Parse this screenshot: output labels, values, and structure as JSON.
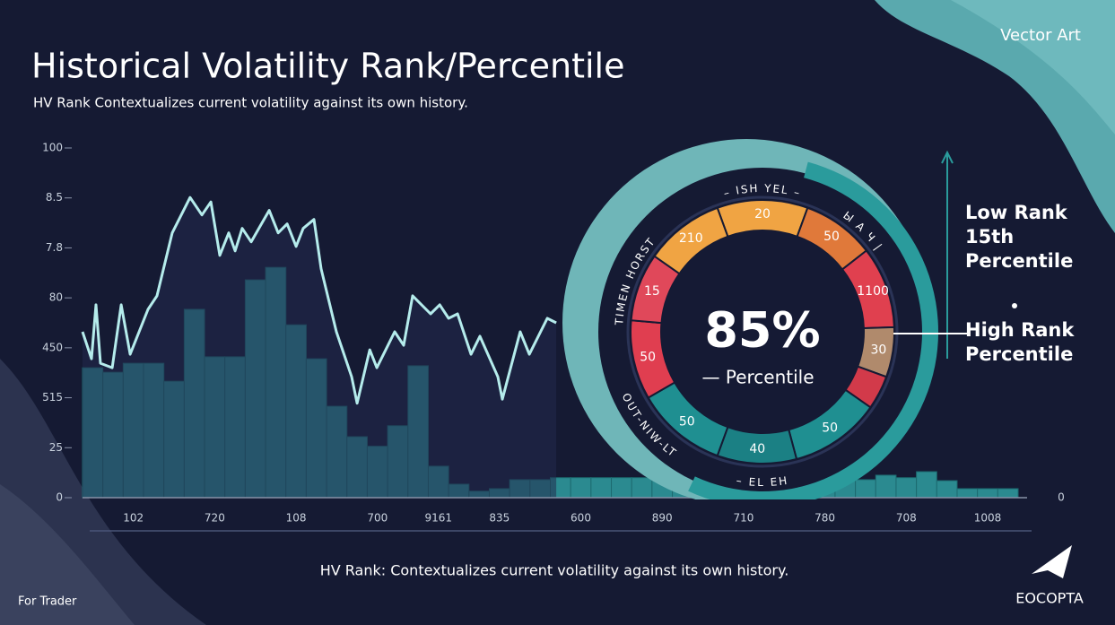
{
  "header": {
    "title": "Historical Volatility Rank/Percentile",
    "subtitle": "HV Rank Contextualizes current volatility against its own history.",
    "badge": "Vector Art"
  },
  "chart_data": {
    "type": "bar",
    "categories": [
      null,
      null,
      "102",
      null,
      null,
      null,
      "720",
      null,
      null,
      null,
      "108",
      null,
      null,
      null,
      "700",
      null,
      null,
      "9161",
      null,
      null,
      "835",
      null,
      null,
      null,
      "600",
      null,
      null,
      null,
      "890",
      null,
      null,
      null,
      "710",
      null,
      null,
      null,
      "780",
      null,
      null,
      null,
      "708",
      null,
      null,
      null,
      "1008",
      null
    ],
    "series": [
      {
        "type": "bar",
        "color": "#2b8a90",
        "values": [
          2.6,
          2.51,
          2.69,
          2.69,
          2.33,
          3.77,
          2.82,
          2.82,
          4.36,
          4.61,
          3.46,
          2.78,
          1.83,
          1.22,
          1.03,
          1.44,
          2.64,
          0.63,
          0.27,
          0.13,
          0.18,
          0.36,
          0.36,
          0.4,
          0.4,
          0.4,
          0.4,
          0.4,
          0.4,
          0.4,
          0.4,
          0.4,
          0.4,
          0.4,
          0.4,
          0.4,
          0.4,
          0.4,
          0.36,
          0.45,
          0.4,
          0.52,
          0.34,
          0.18,
          0.18,
          0.18
        ]
      },
      {
        "type": "line",
        "color": "#b5ecec",
        "x": [
          0,
          0.44,
          0.66,
          0.88,
          1.46,
          1.9,
          2.34,
          3.22,
          3.66,
          4.41,
          5.29,
          5.87,
          6.31,
          6.75,
          7.19,
          7.5,
          7.85,
          8.29,
          9.18,
          9.62,
          10.06,
          10.5,
          10.85,
          11.38,
          11.73,
          12.48,
          13.23,
          13.5,
          14.12,
          14.47,
          15.35,
          15.79,
          16.23,
          17.11,
          17.56,
          18,
          18.44,
          19.1,
          19.54,
          20.42,
          20.64,
          21.52,
          21.97,
          22.85,
          23.29
        ],
        "values": [
          3.32,
          2.78,
          3.86,
          2.69,
          2.6,
          3.86,
          2.87,
          3.77,
          4.04,
          5.3,
          6.01,
          5.66,
          5.92,
          4.85,
          5.3,
          4.94,
          5.39,
          5.12,
          5.75,
          5.3,
          5.48,
          5.03,
          5.39,
          5.57,
          4.58,
          3.32,
          2.42,
          1.89,
          2.96,
          2.6,
          3.32,
          3.05,
          4.04,
          3.68,
          3.86,
          3.59,
          3.68,
          2.87,
          3.23,
          2.42,
          1.97,
          3.32,
          2.87,
          3.59,
          3.5
        ]
      }
    ],
    "xlim": [
      0,
      46
    ],
    "ylim": [
      0,
      7
    ],
    "yticks": [
      0,
      {
        "value": 1,
        "label": "25"
      },
      {
        "value": 2,
        "label": "515"
      },
      {
        "value": 3,
        "label": "450"
      },
      {
        "value": 4,
        "label": "80"
      },
      {
        "value": 5,
        "label": "7.8"
      },
      {
        "value": 6,
        "label": "8.5"
      },
      {
        "value": 7,
        "label": "100"
      }
    ],
    "right_axis_label": "0",
    "gauge": {
      "center_label": "85%",
      "sublabel": "— Percentile",
      "segments": [
        {
          "label": "20",
          "color": "#f0a443"
        },
        {
          "label": "50",
          "color": "#e0793a"
        },
        {
          "label": "1100",
          "color": "#e0404f"
        },
        {
          "label": "30",
          "color": "#b08a6c"
        },
        {
          "label": null,
          "color": "#d23a4a"
        },
        {
          "label": "50",
          "color": "#1f8f91"
        },
        {
          "label": "40",
          "color": "#1b8084"
        },
        {
          "label": "50",
          "color": "#1f8f91"
        },
        {
          "label": "50",
          "color": "#e03e50"
        },
        {
          "label": "15",
          "color": "#e0485a"
        },
        {
          "label": "210",
          "color": "#f0a443"
        }
      ],
      "ring_top_texts": [
        "TIMEN HORST",
        "– ISH YEL –",
        "Ы А Ч |"
      ],
      "ring_bottom_texts": [
        "OUT-NIW-LT",
        "– EL EH"
      ]
    },
    "annotations": [
      {
        "lines": [
          "Low Rank",
          "15th",
          "Percentile"
        ]
      },
      {
        "lines": [
          "High Rank",
          "Percentile"
        ]
      }
    ]
  },
  "footer": {
    "caption": "HV Rank: Contextualizes current volatility against its own history.",
    "left": "For Trader",
    "brand": "EOCOPTA"
  }
}
